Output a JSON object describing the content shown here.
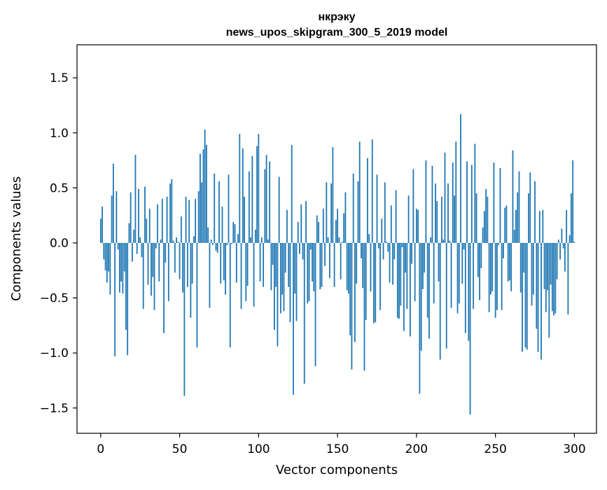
{
  "chart_data": {
    "type": "bar",
    "title": "нкрэку",
    "subtitle": "news_upos_skipgram_300_5_2019 model",
    "xlabel": "Vector components",
    "ylabel": "Components values",
    "xlim": [
      -15,
      314
    ],
    "ylim": [
      -1.73,
      1.8
    ],
    "xticks": [
      0,
      50,
      100,
      150,
      200,
      250,
      300
    ],
    "xtick_labels": [
      "0",
      "50",
      "100",
      "150",
      "200",
      "250",
      "300"
    ],
    "yticks": [
      -1.5,
      -1.0,
      -0.5,
      0.0,
      0.5,
      1.0,
      1.5
    ],
    "ytick_labels": [
      "−1.5",
      "−1.0",
      "−0.5",
      "0.0",
      "0.5",
      "1.0",
      "1.5"
    ],
    "grid": false,
    "bar_color": "#1f77b4",
    "axis_color": "#000000",
    "series": [
      {
        "name": "components",
        "x_start": 0,
        "values": [
          0.22,
          0.33,
          -0.15,
          -0.25,
          -0.36,
          -0.26,
          -0.47,
          0.43,
          0.72,
          -1.03,
          0.47,
          -0.06,
          -0.45,
          -0.35,
          -0.46,
          -0.26,
          -0.79,
          -1.02,
          0.18,
          0.46,
          -0.17,
          0.12,
          0.8,
          -0.1,
          0.49,
          0.05,
          -0.13,
          -0.6,
          0.51,
          0.22,
          -0.38,
          0.31,
          -0.48,
          -0.31,
          -0.61,
          -0.05,
          0.35,
          -0.35,
          0.03,
          0.4,
          -0.82,
          -0.18,
          0.42,
          -0.53,
          0.54,
          0.58,
          0.02,
          -0.27,
          0.05,
          0.01,
          -0.33,
          0.24,
          -0.45,
          -1.39,
          0.42,
          -0.4,
          0.39,
          -0.68,
          -0.37,
          0.06,
          0.4,
          -0.95,
          0.47,
          0.81,
          0.55,
          0.85,
          1.03,
          0.89,
          0.14,
          -0.59,
          0.03,
          -0.02,
          0.63,
          -0.07,
          -0.09,
          0.56,
          -0.37,
          0.33,
          -0.34,
          -0.47,
          -0.02,
          0.62,
          -0.95,
          -0.01,
          0.19,
          0.17,
          -0.36,
          0.08,
          0.99,
          -0.6,
          0.86,
          0.42,
          -0.53,
          -0.39,
          0.65,
          0.05,
          0.79,
          -0.58,
          0.12,
          0.88,
          0.99,
          -0.35,
          0.05,
          -0.4,
          0.67,
          0.8,
          0.03,
          0.74,
          -0.43,
          -0.2,
          -0.79,
          -0.4,
          -0.94,
          0.6,
          -0.64,
          -0.47,
          -0.62,
          -0.27,
          0.3,
          -0.4,
          -0.72,
          0.89,
          -1.38,
          -0.46,
          -0.71,
          0.19,
          -0.1,
          0.35,
          -0.15,
          -1.28,
          0.38,
          -0.55,
          -0.53,
          -0.06,
          -0.35,
          -0.44,
          -1.12,
          0.25,
          0.19,
          -0.42,
          -0.4,
          0.31,
          -0.21,
          0.55,
          0.05,
          -0.32,
          0.54,
          0.87,
          -0.4,
          0.21,
          0.31,
          0.05,
          -0.33,
          0.01,
          0.27,
          0.46,
          -0.43,
          -0.46,
          -0.84,
          -1.15,
          0.63,
          -0.9,
          -0.37,
          0.56,
          0.92,
          -0.14,
          -0.41,
          -1.16,
          -0.7,
          0.77,
          0.08,
          -0.44,
          0.94,
          -0.73,
          -0.72,
          0.62,
          -0.05,
          -0.61,
          0.22,
          -0.15,
          0.55,
          0.01,
          -0.08,
          -0.36,
          0.34,
          -0.38,
          -0.15,
          0.48,
          -0.68,
          -0.69,
          -0.57,
          -0.04,
          -0.8,
          -0.27,
          -0.6,
          0.43,
          -0.85,
          -0.19,
          0.67,
          -0.53,
          0.31,
          0.3,
          -1.37,
          -0.98,
          -0.42,
          -0.27,
          0.75,
          -0.68,
          -0.87,
          0.05,
          0.7,
          -0.55,
          0.54,
          0.38,
          -0.35,
          -1.06,
          0.42,
          0.03,
          0.82,
          -0.96,
          0.54,
          0.02,
          -0.59,
          0.73,
          0.43,
          0.92,
          -0.64,
          -0.55,
          1.17,
          -0.37,
          -0.06,
          -0.82,
          0.74,
          -0.89,
          -1.56,
          0.71,
          -0.6,
          0.9,
          0.45,
          -0.31,
          -0.52,
          -0.23,
          0.14,
          0.29,
          0.49,
          0.42,
          -0.63,
          -0.47,
          -0.44,
          0.73,
          -0.68,
          -0.61,
          -0.02,
          0.68,
          -0.61,
          -0.14,
          0.32,
          0.34,
          -0.35,
          -0.34,
          -0.44,
          0.84,
          0.12,
          0.3,
          0.46,
          0.65,
          -0.45,
          -0.99,
          -0.27,
          -0.95,
          -0.97,
          0.45,
          0.64,
          -0.57,
          -0.47,
          0.56,
          -0.78,
          -0.99,
          0.29,
          -1.06,
          0.3,
          -0.42,
          -0.63,
          -0.43,
          -0.86,
          -0.38,
          -0.62,
          -0.66,
          -0.64,
          -0.33,
          0.03,
          -0.15,
          0.13,
          -0.05,
          -0.26,
          0.3,
          -0.65,
          0.07,
          0.45,
          0.75,
          0.01
        ]
      }
    ]
  }
}
